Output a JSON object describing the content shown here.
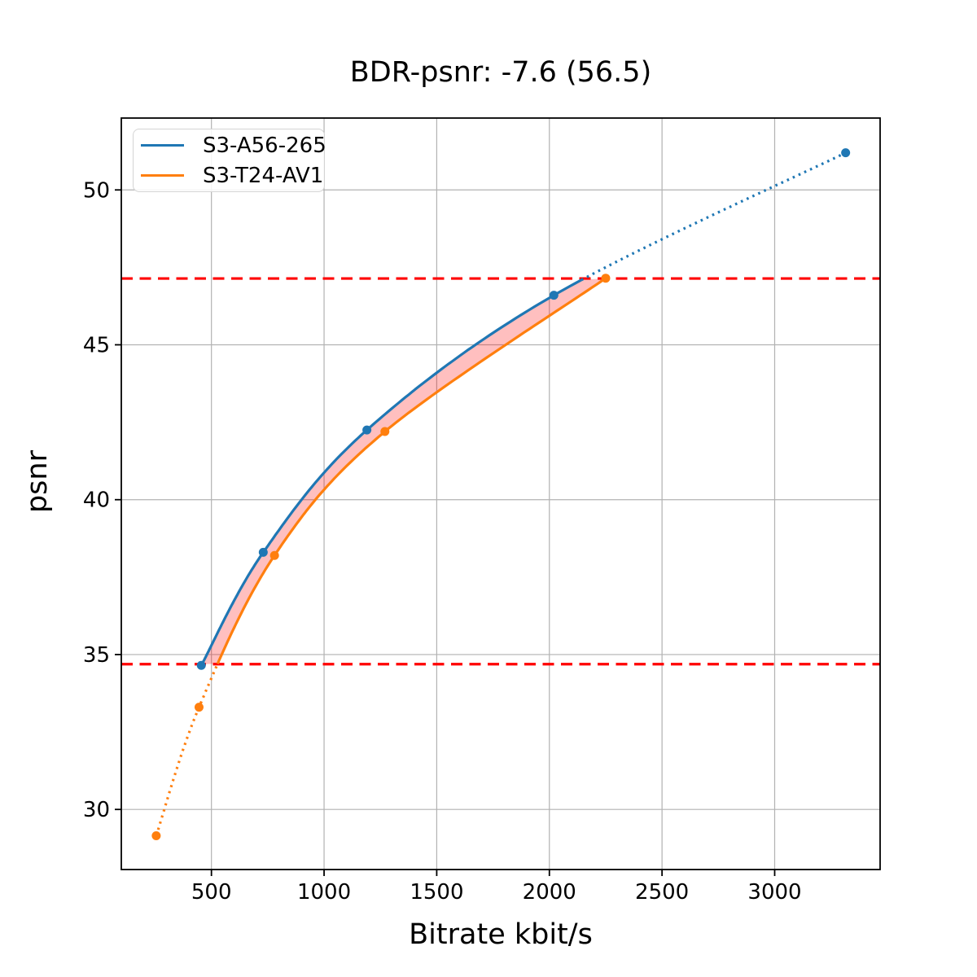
{
  "chart_data": {
    "type": "line",
    "title": "BDR-psnr: -7.6 (56.5)",
    "xlabel": "Bitrate kbit/s",
    "ylabel": "psnr",
    "xlim": [
      100,
      3468
    ],
    "ylim": [
      28.06,
      52.32
    ],
    "xticks": [
      500,
      1000,
      1500,
      2000,
      2500,
      3000
    ],
    "yticks": [
      30,
      35,
      40,
      45,
      50
    ],
    "grid": true,
    "grid_color": "#b2b2b2",
    "legend_position": "upper left",
    "series": [
      {
        "name": "S3-A56-265",
        "color": "#1f77b4",
        "marker": "circle",
        "x": [
          455,
          730,
          1190,
          2020,
          3315
        ],
        "y": [
          34.65,
          38.3,
          42.25,
          46.6,
          51.2
        ],
        "solid_min_psnr": null,
        "solid_max_psnr": 47.14
      },
      {
        "name": "S3-T24-AV1",
        "color": "#ff7f0e",
        "marker": "circle",
        "x": [
          255,
          445,
          780,
          1270,
          2250
        ],
        "y": [
          29.15,
          33.3,
          38.2,
          42.2,
          47.15
        ],
        "solid_min_psnr": 34.69,
        "solid_max_psnr": null
      }
    ],
    "reference_lines": [
      {
        "orientation": "horizontal",
        "value": 34.69,
        "color": "#ff0000",
        "style": "dashed"
      },
      {
        "orientation": "horizontal",
        "value": 47.14,
        "color": "#ff0000",
        "style": "dashed"
      }
    ],
    "bd_shading": {
      "color": "#ff0000",
      "opacity": 0.25,
      "psnr_range": [
        34.69,
        47.15
      ]
    }
  }
}
